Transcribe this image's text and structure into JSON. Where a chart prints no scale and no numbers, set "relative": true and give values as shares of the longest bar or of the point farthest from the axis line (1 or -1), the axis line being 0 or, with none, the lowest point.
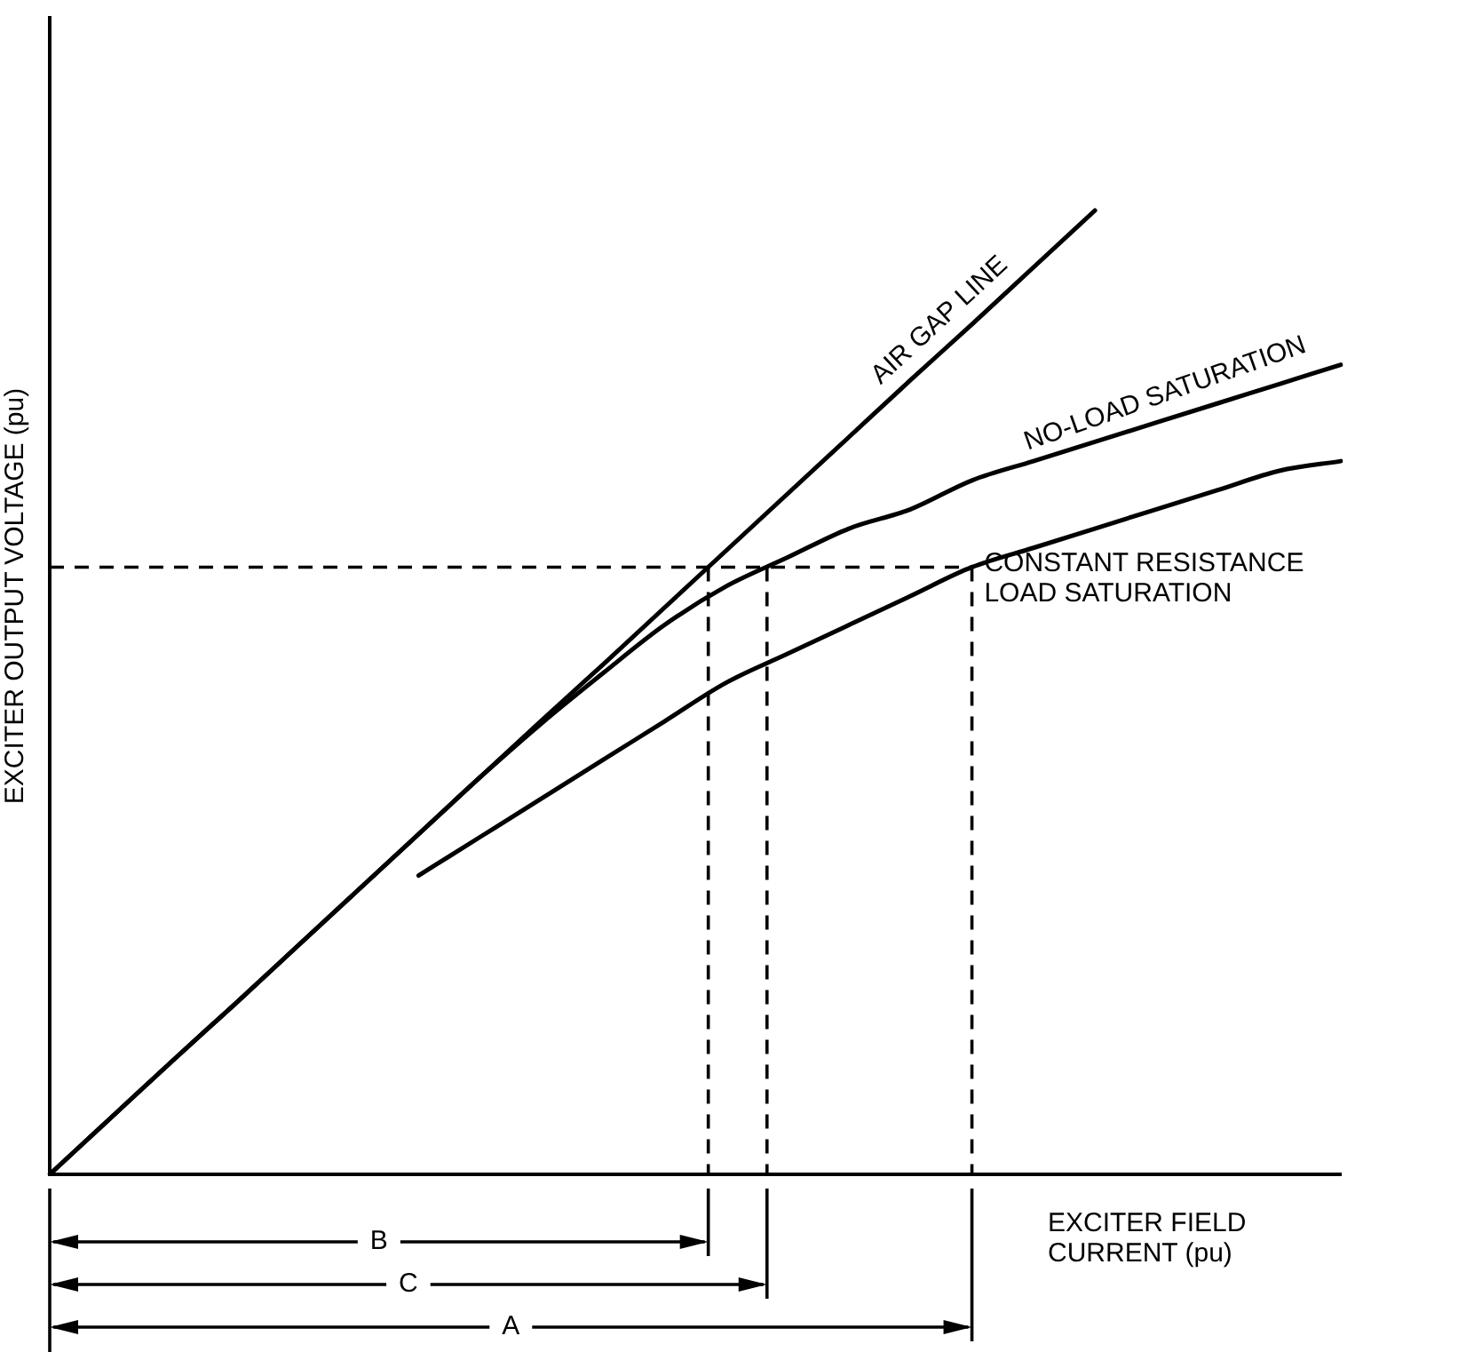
{
  "chart_data": {
    "type": "line",
    "relative": true,
    "xlabel": "EXCITER FIELD CURRENT (pu)",
    "ylabel": "EXCITER OUTPUT VOLTAGE (pu)",
    "categories": [
      null,
      null,
      null,
      null,
      null,
      null,
      null,
      null,
      null,
      null,
      null,
      null,
      null,
      null,
      null,
      null,
      null,
      null,
      null,
      null,
      null,
      null
    ],
    "series": [
      {
        "name": "AIR GAP LINE",
        "color": "#000000",
        "values": [
          0,
          0.059,
          0.118,
          0.176,
          0.235,
          0.294,
          0.353,
          0.412,
          0.471,
          0.529,
          0.588,
          0.647,
          0.706,
          0.765,
          0.824,
          0.882,
          0.941,
          1,
          null,
          null,
          null,
          null
        ]
      },
      {
        "name": "NO-LOAD SATURATION",
        "color": "#000000",
        "values": [
          0,
          0.059,
          0.118,
          0.176,
          0.235,
          0.294,
          0.353,
          0.412,
          0.468,
          0.52,
          0.57,
          0.61,
          0.64,
          0.67,
          0.69,
          0.72,
          0.74,
          0.76,
          0.78,
          0.8,
          0.82,
          0.84
        ]
      },
      {
        "name": "CONSTANT RESISTANCE LOAD SATURATION",
        "color": "#000000",
        "values": [
          null,
          null,
          null,
          null,
          null,
          null,
          0.31,
          0.35,
          0.39,
          0.43,
          0.47,
          0.51,
          0.54,
          0.57,
          0.6,
          0.63,
          0.65,
          0.67,
          0.69,
          0.71,
          0.73,
          0.74
        ]
      }
    ],
    "ref_lines": [
      {
        "axis": "y",
        "value": 0.63,
        "line_style": "dashed"
      }
    ],
    "annotations": [
      "B",
      "C",
      "A"
    ],
    "legend": false,
    "grid": false,
    "tick_labels": false,
    "marker": "none",
    "line_style": "solid"
  }
}
